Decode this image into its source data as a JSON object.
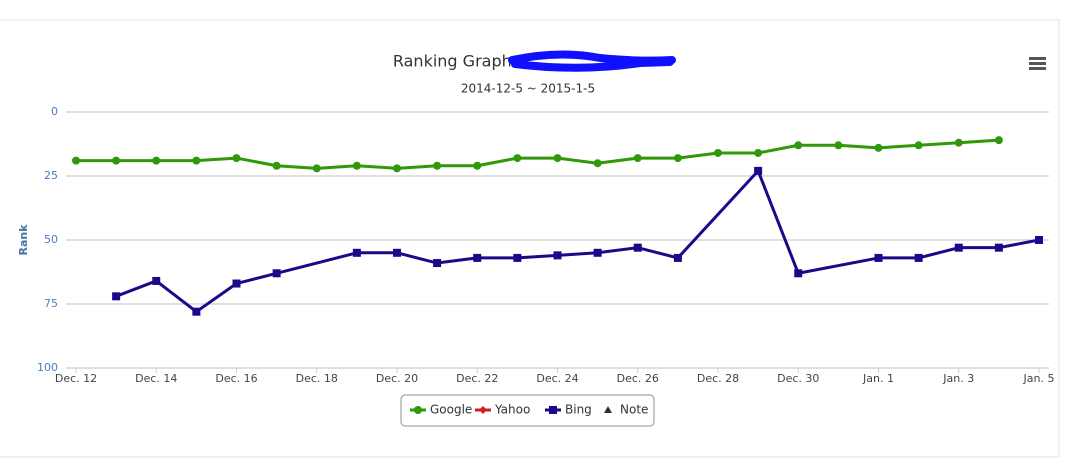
{
  "chart_data": {
    "type": "line",
    "title": "Ranking Graph:",
    "subtitle": "2014-12-5 ~ 2015-1-5",
    "y_label": "Rank",
    "categories": [
      "Dec. 12",
      null,
      "Dec. 14",
      null,
      "Dec. 16",
      null,
      "Dec. 18",
      null,
      "Dec. 20",
      null,
      "Dec. 22",
      null,
      "Dec. 24",
      null,
      "Dec. 26",
      null,
      "Dec. 28",
      null,
      "Dec. 30",
      null,
      "Jan. 1",
      null,
      "Jan. 3",
      null,
      "Jan. 5"
    ],
    "ylim": [
      0,
      100
    ],
    "yticks": [
      0,
      25,
      50,
      75,
      100
    ],
    "y_reversed": true,
    "grid": true,
    "connect_nulls": true,
    "legend": "bottom",
    "series": [
      {
        "name": "Google",
        "color": "#2f990a",
        "marker": "circle",
        "values": [
          19,
          19,
          19,
          19,
          18,
          21,
          22,
          21,
          22,
          21,
          21,
          18,
          18,
          20,
          18,
          18,
          16,
          16,
          13,
          13,
          14,
          13,
          12,
          11,
          null
        ]
      },
      {
        "name": "Yahoo",
        "color": "#cc2020",
        "marker": "diamond",
        "values": [
          null,
          null,
          null,
          null,
          null,
          null,
          null,
          null,
          null,
          null,
          null,
          null,
          null,
          null,
          null,
          null,
          null,
          null,
          null,
          null,
          null,
          null,
          null,
          null,
          null
        ]
      },
      {
        "name": "Bing",
        "color": "#1a0a8a",
        "marker": "square",
        "values": [
          null,
          72,
          66,
          78,
          67,
          63,
          null,
          55,
          55,
          59,
          57,
          57,
          56,
          55,
          53,
          57,
          null,
          23,
          63,
          null,
          57,
          57,
          53,
          53,
          50
        ]
      },
      {
        "name": "Note",
        "color": "#333333",
        "marker": "triangle",
        "values": [
          null,
          null,
          null,
          null,
          null,
          null,
          null,
          null,
          null,
          null,
          null,
          null,
          null,
          null,
          null,
          null,
          null,
          null,
          null,
          null,
          null,
          null,
          null,
          null,
          null
        ]
      }
    ]
  }
}
